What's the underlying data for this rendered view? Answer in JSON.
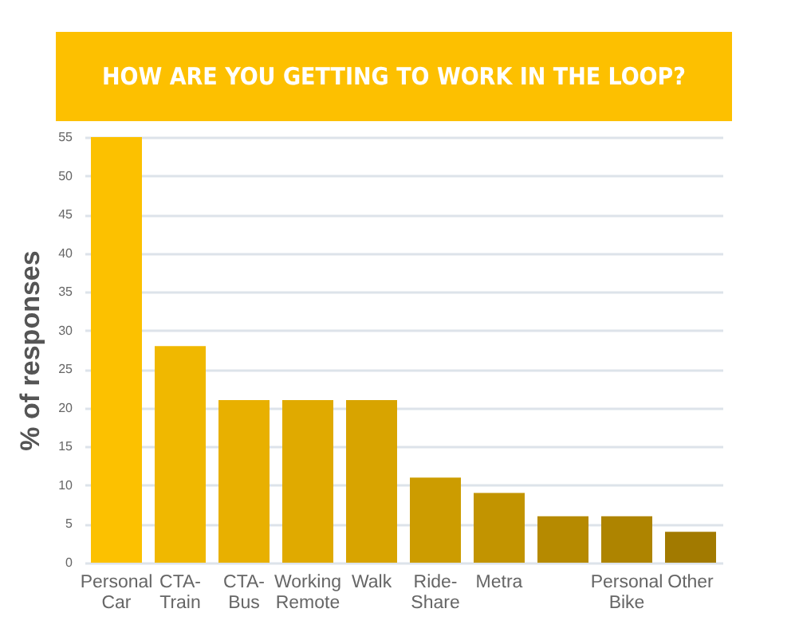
{
  "chart_data": {
    "type": "bar",
    "title": "HOW ARE YOU GETTING TO WORK IN THE LOOP?",
    "ylabel": "% of responses",
    "categories": [
      "Personal Car",
      "CTA-Train",
      "CTA-Bus",
      "Working Remote",
      "Walk",
      "Ride-Share",
      "Metra",
      null,
      "Personal Bike",
      "Other"
    ],
    "values": [
      55,
      28,
      21,
      21,
      21,
      11,
      9,
      6,
      6,
      4
    ],
    "colors": [
      "#fcc100",
      "#f0b800",
      "#e8b000",
      "#e0aa00",
      "#d8a400",
      "#cc9c00",
      "#c29400",
      "#b68a00",
      "#ae8400",
      "#a27a00"
    ],
    "ylim": [
      0,
      55
    ],
    "yticks": [
      0,
      5,
      10,
      15,
      20,
      25,
      30,
      35,
      40,
      45,
      50,
      55
    ],
    "grid": "y"
  }
}
